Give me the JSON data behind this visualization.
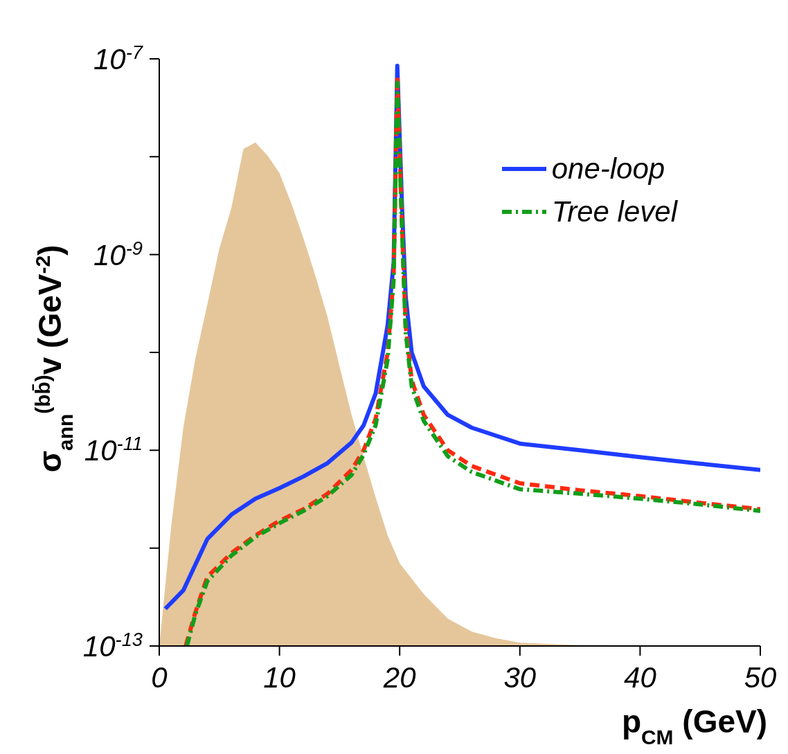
{
  "chart_data": {
    "type": "line",
    "xlabel": "p$_{CM}$ (GeV)",
    "ylabel": "σ$_{ann}$$^{(bb̄)}$v (GeV$^{-2}$)",
    "log": "y",
    "xlim": [
      0,
      50
    ],
    "ylim": [
      1e-13,
      1e-07
    ],
    "xticks": [
      0,
      10,
      20,
      30,
      40,
      50
    ],
    "yticks": [
      {
        "value": 1e-13,
        "label": "10$^{-13}$"
      },
      {
        "value": 1e-12,
        "label": null
      },
      {
        "value": 1e-11,
        "label": "10$^{-11}$"
      },
      {
        "value": 1e-10,
        "label": null
      },
      {
        "value": 1e-09,
        "label": "10$^{-9}$"
      },
      {
        "value": 1e-08,
        "label": null
      },
      {
        "value": 1e-07,
        "label": "10$^{-7}$"
      }
    ],
    "legend": "top right",
    "grid": false,
    "marker": "none",
    "series": [
      {
        "type": "area",
        "color": "#e5c69b",
        "x": [
          0,
          1,
          2,
          3,
          4,
          5,
          6,
          7,
          8,
          9,
          10,
          11,
          12,
          13,
          14,
          15,
          16,
          17,
          18,
          19,
          20,
          22,
          24,
          26,
          28,
          30,
          35,
          50
        ],
        "values": [
          1e-13,
          1.7e-12,
          1.7e-11,
          8.6e-11,
          3.1e-10,
          1.15e-09,
          3e-09,
          1.2e-08,
          1.4e-08,
          1.03e-08,
          6.8e-09,
          3.3e-09,
          1.46e-09,
          6e-10,
          2.3e-10,
          7.2e-11,
          2.3e-11,
          8.6e-12,
          3.3e-12,
          1.35e-12,
          7e-13,
          3.4e-13,
          1.9e-13,
          1.4e-13,
          1.2e-13,
          1.08e-13,
          1.02e-13,
          1e-13
        ]
      },
      {
        "name": "one-loop",
        "color": "#1f3cff",
        "line_style": "solid",
        "x": [
          0.5,
          2,
          4,
          6,
          8,
          10,
          12,
          14,
          16,
          17,
          18,
          19,
          19.5,
          19.8,
          20.2,
          20.5,
          21,
          22,
          24,
          26,
          30,
          35,
          40,
          45,
          50
        ],
        "values": [
          2.4e-13,
          3.7e-13,
          1.24e-12,
          2.2e-12,
          3.2e-12,
          4.1e-12,
          5.4e-12,
          7.4e-12,
          1.2e-11,
          1.8e-11,
          3.8e-11,
          1.9e-10,
          8.3e-10,
          8.5e-08,
          3e-09,
          3.7e-10,
          1e-10,
          4.5e-11,
          2.3e-11,
          1.7e-11,
          1.17e-11,
          1e-11,
          8.5e-12,
          7.3e-12,
          6.3e-12
        ]
      },
      {
        "color": "#ff2a10",
        "line_style": "dashed",
        "x": [
          2.2,
          3,
          4,
          6,
          8,
          10,
          12,
          14,
          16,
          17,
          18,
          19,
          19.5,
          19.8,
          20.2,
          20.5,
          21,
          22,
          24,
          26,
          30,
          35,
          40,
          45,
          50
        ],
        "values": [
          1e-13,
          2.2e-13,
          5.1e-13,
          8.9e-13,
          1.35e-12,
          1.9e-12,
          2.5e-12,
          3.6e-12,
          6.3e-12,
          1e-11,
          2.1e-11,
          1e-10,
          6e-10,
          6.6e-08,
          1.9e-09,
          1.9e-10,
          5.2e-11,
          2.3e-11,
          1e-11,
          6.9e-12,
          4.6e-12,
          3.9e-12,
          3.4e-12,
          2.9e-12,
          2.5e-12
        ]
      },
      {
        "name": "Tree level",
        "color": "#129e1a",
        "line_style": "dashdot",
        "x": [
          2.3,
          3,
          4,
          6,
          8,
          10,
          12,
          14,
          16,
          17,
          18,
          19,
          19.5,
          19.8,
          20.2,
          20.5,
          21,
          22,
          24,
          26,
          30,
          35,
          40,
          45,
          50
        ],
        "values": [
          1e-13,
          2.1e-13,
          4.6e-13,
          8.4e-13,
          1.3e-12,
          1.8e-12,
          2.4e-12,
          3.4e-12,
          5.6e-12,
          9e-12,
          1.8e-11,
          8.5e-11,
          5.5e-10,
          5.7e-08,
          1.7e-09,
          1.6e-10,
          4.5e-11,
          2e-11,
          8.7e-12,
          6e-12,
          4e-12,
          3.6e-12,
          3.2e-12,
          2.8e-12,
          2.4e-12
        ]
      }
    ]
  }
}
